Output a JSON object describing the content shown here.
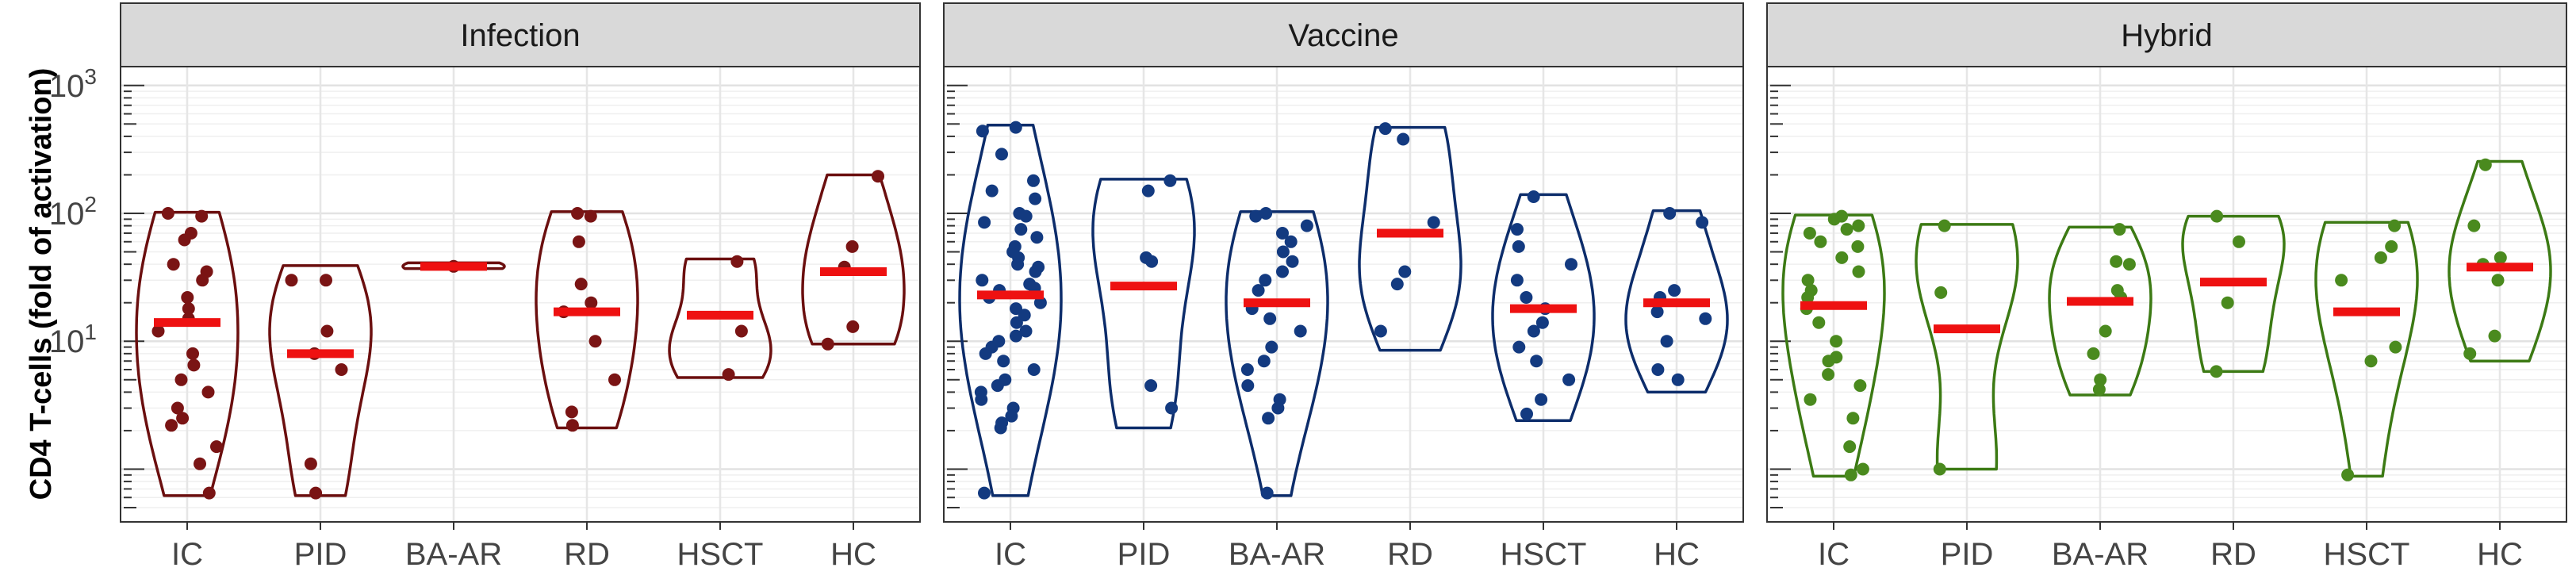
{
  "chart_data": {
    "type": "violin",
    "ylabel": "CD4 T-cells (fold of activation)",
    "y_scale": "log10",
    "ylim": [
      0.5,
      1200
    ],
    "y_ticks": [
      {
        "value": 10,
        "label": "10",
        "sup": "1"
      },
      {
        "value": 100,
        "label": "10",
        "sup": "2"
      },
      {
        "value": 1000,
        "label": "10",
        "sup": "3"
      }
    ],
    "categories": [
      "IC",
      "PID",
      "BA-AR",
      "RD",
      "HSCT",
      "HC"
    ],
    "grid": true,
    "median_color": "#ee1111",
    "panels": [
      {
        "title": "Infection",
        "color": "#6b0f0f",
        "point_color": "#7a1414",
        "groups": [
          {
            "category": "IC",
            "min": 0.62,
            "max": 102,
            "median": 14,
            "points": [
              100,
              95,
              70,
              62,
              40,
              35,
              30,
              22,
              18,
              15,
              12,
              8,
              6.5,
              5,
              4,
              3,
              2.5,
              2.2,
              1.5,
              1.1,
              0.65
            ]
          },
          {
            "category": "PID",
            "min": 0.62,
            "max": 39,
            "median": 8,
            "points": [
              30,
              30,
              12,
              8,
              6,
              1.1,
              0.65
            ]
          },
          {
            "category": "BA-AR",
            "min": 37,
            "max": 41,
            "median": 38.5,
            "points": [
              38.5
            ]
          },
          {
            "category": "RD",
            "min": 2.1,
            "max": 103,
            "median": 17,
            "points": [
              100,
              95,
              60,
              28,
              20,
              17,
              10,
              5,
              2.8,
              2.2
            ]
          },
          {
            "category": "HSCT",
            "min": 5.2,
            "max": 44,
            "median": 16,
            "points": [
              42,
              12,
              5.5
            ]
          },
          {
            "category": "HC",
            "min": 9.5,
            "max": 200,
            "median": 35,
            "points": [
              195,
              55,
              38,
              13,
              9.5
            ]
          }
        ]
      },
      {
        "title": "Vaccine",
        "color": "#0d2d6b",
        "point_color": "#133a80",
        "groups": [
          {
            "category": "IC",
            "min": 0.62,
            "max": 490,
            "median": 23,
            "points": [
              470,
              440,
              290,
              180,
              150,
              130,
              100,
              95,
              85,
              75,
              65,
              55,
              50,
              45,
              40,
              38,
              35,
              30,
              28,
              26,
              25,
              22,
              20,
              18,
              16,
              14,
              12,
              11,
              10,
              9,
              8,
              7,
              6,
              5,
              4.5,
              4,
              3.5,
              3,
              2.6,
              2.3,
              2.1,
              0.65
            ]
          },
          {
            "category": "PID",
            "min": 2.1,
            "max": 185,
            "median": 27,
            "points": [
              180,
              150,
              45,
              42,
              4.5,
              3
            ]
          },
          {
            "category": "BA-AR",
            "min": 0.62,
            "max": 103,
            "median": 20,
            "points": [
              100,
              95,
              80,
              70,
              60,
              50,
              42,
              35,
              30,
              25,
              18,
              15,
              12,
              9,
              7,
              6,
              4.5,
              3.5,
              3,
              2.5,
              0.65
            ]
          },
          {
            "category": "RD",
            "min": 8.5,
            "max": 470,
            "median": 70,
            "points": [
              460,
              380,
              85,
              35,
              28,
              12
            ]
          },
          {
            "category": "HSCT",
            "min": 2.4,
            "max": 140,
            "median": 18,
            "points": [
              135,
              75,
              55,
              40,
              30,
              22,
              18,
              14,
              12,
              9,
              7,
              5,
              3.5,
              2.7
            ]
          },
          {
            "category": "HC",
            "min": 4,
            "max": 105,
            "median": 20,
            "points": [
              100,
              85,
              25,
              22,
              17,
              15,
              10,
              6,
              5
            ]
          }
        ]
      },
      {
        "title": "Hybrid",
        "color": "#3c7a14",
        "point_color": "#4a8a1e",
        "groups": [
          {
            "category": "IC",
            "min": 0.88,
            "max": 97,
            "median": 19,
            "points": [
              95,
              90,
              80,
              75,
              70,
              60,
              55,
              45,
              35,
              30,
              25,
              22,
              18,
              14,
              10,
              7.5,
              7,
              5.5,
              4.5,
              3.5,
              2.5,
              1.5,
              1,
              0.9
            ]
          },
          {
            "category": "PID",
            "min": 1,
            "max": 82,
            "median": 12.5,
            "points": [
              80,
              24,
              1
            ]
          },
          {
            "category": "BA-AR",
            "min": 3.8,
            "max": 78,
            "median": 20.5,
            "points": [
              75,
              42,
              40,
              25,
              22,
              12,
              8,
              5,
              4.2
            ]
          },
          {
            "category": "RD",
            "min": 5.8,
            "max": 95,
            "median": 29,
            "points": [
              95,
              60,
              20,
              5.8
            ]
          },
          {
            "category": "HSCT",
            "min": 0.88,
            "max": 85,
            "median": 17,
            "points": [
              80,
              55,
              45,
              30,
              9,
              7,
              0.9
            ]
          },
          {
            "category": "HC",
            "min": 7,
            "max": 255,
            "median": 38,
            "points": [
              240,
              80,
              45,
              40,
              30,
              11,
              8
            ]
          }
        ]
      }
    ]
  }
}
